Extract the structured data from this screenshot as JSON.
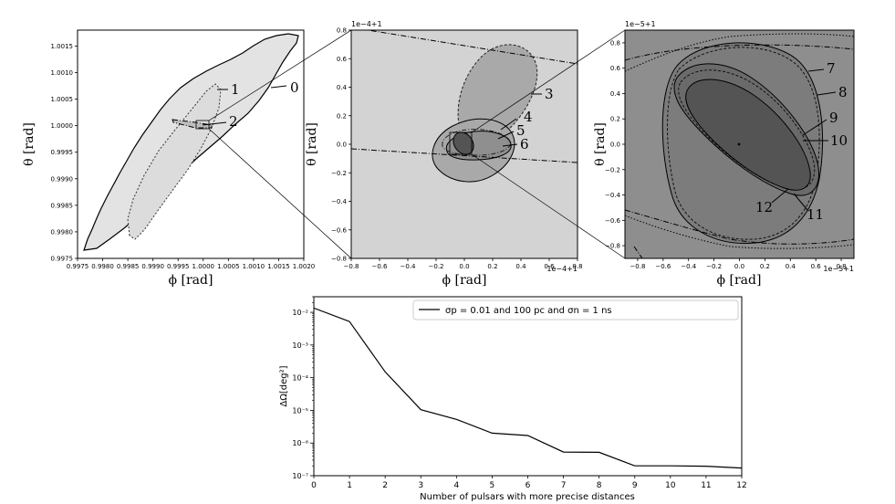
{
  "figure": {
    "bg_color": "#ffffff",
    "contour_fill_1": "#e3e3e3",
    "contour_fill_2": "#a9a9a9",
    "contour_fill_3": "#7c7c7c",
    "contour_fill_4": "#545454",
    "panel_bg_2": "#d3d3d3",
    "panel_bg_3": "#8e8e8e"
  },
  "chart_data": [
    {
      "type": "contour",
      "panel": "zoom-level-1",
      "xlabel": "ϕ [rad]",
      "ylabel": "θ [rad]",
      "xlim": [
        0.9975,
        1.002
      ],
      "ylim": [
        0.9975,
        1.0018
      ],
      "xticks": [
        "0.9975",
        "0.9980",
        "0.9985",
        "0.9990",
        "0.9995",
        "1.0000",
        "1.0005",
        "1.0010",
        "1.0015",
        "1.0020"
      ],
      "yticks": [
        "0.9975",
        "0.9980",
        "0.9985",
        "0.9990",
        "0.9995",
        "1.0000",
        "1.0005",
        "1.0010",
        "1.0015"
      ],
      "annotations": [
        "0",
        "1",
        "2"
      ]
    },
    {
      "type": "contour",
      "panel": "zoom-level-2",
      "xlabel": "ϕ [rad]",
      "ylabel": "θ [rad]",
      "x_offset_label": "1e−4+1",
      "y_offset_label": "1e−4+1",
      "xlim": [
        -0.8,
        0.8
      ],
      "ylim": [
        -0.8,
        0.8
      ],
      "xticks": [
        "−0.8",
        "−0.6",
        "−0.4",
        "−0.2",
        "0.0",
        "0.2",
        "0.4",
        "0.6",
        "0.8"
      ],
      "yticks": [
        "−0.8",
        "−0.6",
        "−0.4",
        "−0.2",
        "0.0",
        "0.2",
        "0.4",
        "0.6",
        "0.8"
      ],
      "annotations": [
        "3",
        "4",
        "5",
        "6"
      ]
    },
    {
      "type": "contour",
      "panel": "zoom-level-3",
      "xlabel": "ϕ [rad]",
      "ylabel": "θ [rad]",
      "x_offset_label": "1e−5+1",
      "y_offset_label": "1e−5+1",
      "xlim": [
        -0.9,
        0.9
      ],
      "ylim": [
        -0.9,
        0.9
      ],
      "xticks": [
        "−0.8",
        "−0.6",
        "−0.4",
        "−0.2",
        "0.0",
        "0.2",
        "0.4",
        "0.6",
        "0.8"
      ],
      "yticks": [
        "−0.8",
        "−0.6",
        "−0.4",
        "−0.2",
        "0.0",
        "0.2",
        "0.4",
        "0.6",
        "0.8"
      ],
      "annotations": [
        "7",
        "8",
        "9",
        "10",
        "11",
        "12"
      ]
    },
    {
      "type": "line",
      "panel": "error-vs-pulsars",
      "xlabel": "Number of pulsars with more precise distances",
      "ylabel": "ΔΩ[deg²]",
      "y_scale": "log",
      "xlim": [
        0,
        12
      ],
      "ylim": [
        1e-07,
        0.03
      ],
      "xticks": [
        "0",
        "1",
        "2",
        "3",
        "4",
        "5",
        "6",
        "7",
        "8",
        "9",
        "10",
        "11",
        "12"
      ],
      "yticks": [
        "10⁻²",
        "10⁻³",
        "10⁻⁴",
        "10⁻⁵",
        "10⁻⁶",
        "10⁻⁷"
      ],
      "legend_position": "top-right",
      "series": [
        {
          "name": "σp = 0.01 and 100 pc and σn = 1 ns",
          "color": "#000000",
          "x": [
            0,
            1,
            2,
            3,
            4,
            5,
            6,
            7,
            8,
            9,
            10,
            11,
            12
          ],
          "y": [
            0.0135,
            0.0052,
            0.00015,
            1.05e-05,
            5.3e-06,
            2e-06,
            1.7e-06,
            5.3e-07,
            5.2e-07,
            2e-07,
            2e-07,
            1.95e-07,
            1.72e-07
          ]
        }
      ]
    }
  ]
}
